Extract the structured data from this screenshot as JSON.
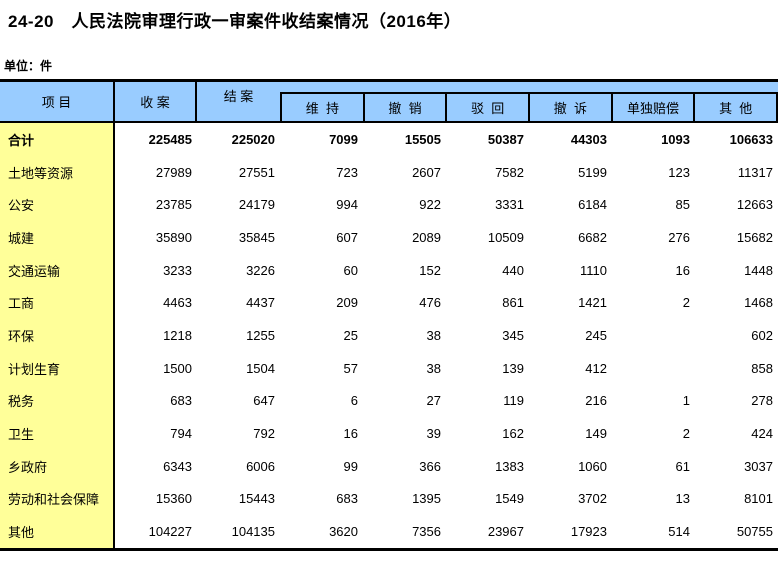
{
  "page": {
    "title": "24-20　人民法院审理行政一审案件收结案情况（2016年）",
    "unit_label": "单位：件"
  },
  "colors": {
    "header_bg": "#99CCFF",
    "label_bg": "#FFFF99",
    "border": "#000000"
  },
  "table": {
    "header": {
      "item": "项  目",
      "received": "收  案",
      "concluded": "结  案",
      "sub_columns": [
        "维  持",
        "撤  销",
        "驳  回",
        "撤  诉",
        "单独赔偿",
        "其  他"
      ]
    },
    "rows": [
      {
        "label": "合计",
        "bold": true,
        "values": [
          "225485",
          "225020",
          "7099",
          "15505",
          "50387",
          "44303",
          "1093",
          "106633"
        ]
      },
      {
        "label": "土地等资源",
        "bold": false,
        "values": [
          "27989",
          "27551",
          "723",
          "2607",
          "7582",
          "5199",
          "123",
          "11317"
        ]
      },
      {
        "label": "公安",
        "bold": false,
        "values": [
          "23785",
          "24179",
          "994",
          "922",
          "3331",
          "6184",
          "85",
          "12663"
        ]
      },
      {
        "label": "城建",
        "bold": false,
        "values": [
          "35890",
          "35845",
          "607",
          "2089",
          "10509",
          "6682",
          "276",
          "15682"
        ]
      },
      {
        "label": "交通运输",
        "bold": false,
        "values": [
          "3233",
          "3226",
          "60",
          "152",
          "440",
          "1110",
          "16",
          "1448"
        ]
      },
      {
        "label": "工商",
        "bold": false,
        "values": [
          "4463",
          "4437",
          "209",
          "476",
          "861",
          "1421",
          "2",
          "1468"
        ]
      },
      {
        "label": "环保",
        "bold": false,
        "values": [
          "1218",
          "1255",
          "25",
          "38",
          "345",
          "245",
          "",
          "602"
        ]
      },
      {
        "label": "计划生育",
        "bold": false,
        "values": [
          "1500",
          "1504",
          "57",
          "38",
          "139",
          "412",
          "",
          "858"
        ]
      },
      {
        "label": "税务",
        "bold": false,
        "values": [
          "683",
          "647",
          "6",
          "27",
          "119",
          "216",
          "1",
          "278"
        ]
      },
      {
        "label": "卫生",
        "bold": false,
        "values": [
          "794",
          "792",
          "16",
          "39",
          "162",
          "149",
          "2",
          "424"
        ]
      },
      {
        "label": "乡政府",
        "bold": false,
        "values": [
          "6343",
          "6006",
          "99",
          "366",
          "1383",
          "1060",
          "61",
          "3037"
        ]
      },
      {
        "label": "劳动和社会保障",
        "bold": false,
        "values": [
          "15360",
          "15443",
          "683",
          "1395",
          "1549",
          "3702",
          "13",
          "8101"
        ]
      },
      {
        "label": "其他",
        "bold": false,
        "values": [
          "104227",
          "104135",
          "3620",
          "7356",
          "23967",
          "17923",
          "514",
          "50755"
        ]
      }
    ]
  }
}
